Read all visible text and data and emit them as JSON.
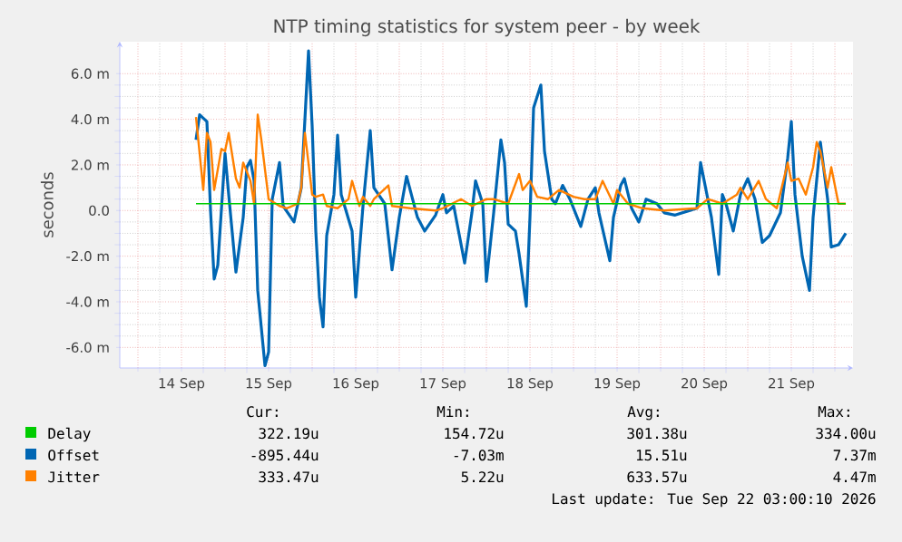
{
  "chart_data": {
    "type": "line",
    "title": "NTP timing statistics for system peer - by week",
    "ylabel": "seconds",
    "xlim": [
      "2026-09-13T19:00",
      "2026-09-22T05:00"
    ],
    "xticks": [
      {
        "value": "2026-09-14T00:00",
        "label": null
      },
      {
        "value": "2026-09-14T12:00",
        "label": "14 Sep"
      },
      {
        "value": "2026-09-15T00:00",
        "label": null
      },
      {
        "value": "2026-09-15T12:00",
        "label": "15 Sep"
      },
      {
        "value": "2026-09-16T00:00",
        "label": null
      },
      {
        "value": "2026-09-16T12:00",
        "label": "16 Sep"
      },
      {
        "value": "2026-09-17T00:00",
        "label": null
      },
      {
        "value": "2026-09-17T12:00",
        "label": "17 Sep"
      },
      {
        "value": "2026-09-18T00:00",
        "label": null
      },
      {
        "value": "2026-09-18T12:00",
        "label": "18 Sep"
      },
      {
        "value": "2026-09-19T00:00",
        "label": null
      },
      {
        "value": "2026-09-19T12:00",
        "label": "19 Sep"
      },
      {
        "value": "2026-09-20T00:00",
        "label": null
      },
      {
        "value": "2026-09-20T12:00",
        "label": "20 Sep"
      },
      {
        "value": "2026-09-21T00:00",
        "label": null
      },
      {
        "value": "2026-09-21T12:00",
        "label": "21 Sep"
      },
      {
        "value": "2026-09-22T00:00",
        "label": null
      }
    ],
    "ylim": [
      -6.9,
      7.4
    ],
    "yticks": [
      {
        "value": -6,
        "label": "-6.0 m"
      },
      {
        "value": -4,
        "label": "-4.0 m"
      },
      {
        "value": -2,
        "label": "-2.0 m"
      },
      {
        "value": 0,
        "label": "0.0"
      },
      {
        "value": 2,
        "label": "2.0 m"
      },
      {
        "value": 4,
        "label": "4.0 m"
      },
      {
        "value": 6,
        "label": "6.0 m"
      }
    ],
    "grid": true,
    "legend": "bottom",
    "series": [
      {
        "name": "Delay",
        "color": "#00cc00",
        "x": [
          "2026-09-14T16:00",
          "2026-09-17T12:00",
          "2026-09-20T12:00",
          "2026-09-22T03:00"
        ],
        "values": [
          0.3,
          0.3,
          0.3,
          0.3
        ]
      },
      {
        "name": "Offset",
        "color": "#0066b3",
        "x": [
          "2026-09-14T16:00",
          "2026-09-14T17:00",
          "2026-09-14T19:00",
          "2026-09-14T20:00",
          "2026-09-14T21:00",
          "2026-09-14T22:00",
          "2026-09-15T00:00",
          "2026-09-15T01:00",
          "2026-09-15T03:00",
          "2026-09-15T05:00",
          "2026-09-15T06:00",
          "2026-09-15T07:00",
          "2026-09-15T08:00",
          "2026-09-15T09:00",
          "2026-09-15T11:00",
          "2026-09-15T12:00",
          "2026-09-15T13:00",
          "2026-09-15T15:00",
          "2026-09-15T16:00",
          "2026-09-15T19:00",
          "2026-09-15T21:00",
          "2026-09-15T23:00",
          "2026-09-16T00:00",
          "2026-09-16T01:00",
          "2026-09-16T02:00",
          "2026-09-16T03:00",
          "2026-09-16T04:00",
          "2026-09-16T06:00",
          "2026-09-16T07:00",
          "2026-09-16T08:00",
          "2026-09-16T11:00",
          "2026-09-16T12:00",
          "2026-09-16T14:00",
          "2026-09-16T16:00",
          "2026-09-16T17:00",
          "2026-09-16T20:00",
          "2026-09-16T22:00",
          "2026-09-17T00:00",
          "2026-09-17T02:00",
          "2026-09-17T03:00",
          "2026-09-17T05:00",
          "2026-09-17T07:00",
          "2026-09-17T10:00",
          "2026-09-17T12:00",
          "2026-09-17T13:00",
          "2026-09-17T15:00",
          "2026-09-17T18:00",
          "2026-09-17T20:00",
          "2026-09-17T21:00",
          "2026-09-17T23:00",
          "2026-09-18T00:00",
          "2026-09-18T02:00",
          "2026-09-18T04:00",
          "2026-09-18T05:00",
          "2026-09-18T06:00",
          "2026-09-18T08:00",
          "2026-09-18T09:00",
          "2026-09-18T11:00",
          "2026-09-18T12:00",
          "2026-09-18T13:00",
          "2026-09-18T15:00",
          "2026-09-18T16:00",
          "2026-09-18T18:00",
          "2026-09-18T19:00",
          "2026-09-18T21:00",
          "2026-09-18T23:00",
          "2026-09-19T02:00",
          "2026-09-19T04:00",
          "2026-09-19T06:00",
          "2026-09-19T07:00",
          "2026-09-19T10:00",
          "2026-09-19T11:00",
          "2026-09-19T13:00",
          "2026-09-19T14:00",
          "2026-09-19T16:00",
          "2026-09-19T18:00",
          "2026-09-19T20:00",
          "2026-09-19T23:00",
          "2026-09-20T01:00",
          "2026-09-20T04:00",
          "2026-09-20T10:00",
          "2026-09-20T11:00",
          "2026-09-20T13:00",
          "2026-09-20T14:00",
          "2026-09-20T16:00",
          "2026-09-20T17:00",
          "2026-09-20T18:00",
          "2026-09-20T20:00",
          "2026-09-20T22:00",
          "2026-09-21T00:00",
          "2026-09-21T02:00",
          "2026-09-21T04:00",
          "2026-09-21T06:00",
          "2026-09-21T09:00",
          "2026-09-21T11:00",
          "2026-09-21T12:00",
          "2026-09-21T13:00",
          "2026-09-21T15:00",
          "2026-09-21T17:00",
          "2026-09-21T18:00",
          "2026-09-21T20:00",
          "2026-09-21T22:00",
          "2026-09-21T23:00",
          "2026-09-22T01:00",
          "2026-09-22T03:00"
        ],
        "values": [
          3.1,
          4.2,
          3.9,
          0,
          -3.0,
          -2.4,
          2.5,
          0.7,
          -2.7,
          -0.3,
          1.9,
          2.2,
          1.3,
          -3.5,
          -6.8,
          -6.2,
          0.5,
          2.1,
          0.2,
          -0.5,
          1.0,
          7.0,
          3.7,
          -0.9,
          -3.8,
          -5.1,
          -1.1,
          0.7,
          3.3,
          0.7,
          -0.9,
          -3.8,
          0.2,
          3.5,
          1.0,
          0.3,
          -2.6,
          -0.3,
          1.5,
          0.9,
          -0.3,
          -0.9,
          -0.2,
          0.7,
          -0.1,
          0.2,
          -2.3,
          -0.1,
          1.3,
          0.3,
          -3.1,
          -0.1,
          3.1,
          2.1,
          -0.6,
          -0.9,
          -1.9,
          -4.2,
          -0.3,
          4.5,
          5.5,
          2.6,
          0.5,
          0.3,
          1.1,
          0.5,
          -0.7,
          0.5,
          1.0,
          -0.1,
          -2.2,
          -0.3,
          1.1,
          1.4,
          0.1,
          -0.5,
          0.5,
          0.3,
          -0.1,
          -0.2,
          0.1,
          2.1,
          0.5,
          -0.3,
          -2.8,
          0.7,
          0.3,
          -0.9,
          0.7,
          1.4,
          0.5,
          -1.4,
          -1.1,
          -0.1,
          2.3,
          3.9,
          0.7,
          -2.0,
          -3.5,
          -0.3,
          3.0,
          0.5,
          -1.6,
          -1.5,
          -1.0
        ]
      },
      {
        "name": "Jitter",
        "color": "#ff8000",
        "x": [
          "2026-09-14T16:00",
          "2026-09-14T18:00",
          "2026-09-14T19:00",
          "2026-09-14T20:00",
          "2026-09-14T21:00",
          "2026-09-14T23:00",
          "2026-09-15T00:00",
          "2026-09-15T01:00",
          "2026-09-15T03:00",
          "2026-09-15T04:00",
          "2026-09-15T05:00",
          "2026-09-15T07:00",
          "2026-09-15T08:00",
          "2026-09-15T09:00",
          "2026-09-15T10:00",
          "2026-09-15T12:00",
          "2026-09-15T15:00",
          "2026-09-15T17:00",
          "2026-09-15T20:00",
          "2026-09-15T21:00",
          "2026-09-15T22:00",
          "2026-09-16T00:00",
          "2026-09-16T01:00",
          "2026-09-16T03:00",
          "2026-09-16T04:00",
          "2026-09-16T07:00",
          "2026-09-16T10:00",
          "2026-09-16T11:00",
          "2026-09-16T13:00",
          "2026-09-16T14:00",
          "2026-09-16T16:00",
          "2026-09-16T17:00",
          "2026-09-16T21:00",
          "2026-09-16T22:00",
          "2026-09-17T03:00",
          "2026-09-17T10:00",
          "2026-09-17T12:00",
          "2026-09-17T17:00",
          "2026-09-17T20:00",
          "2026-09-18T00:00",
          "2026-09-18T02:00",
          "2026-09-18T06:00",
          "2026-09-18T09:00",
          "2026-09-18T10:00",
          "2026-09-18T12:00",
          "2026-09-18T14:00",
          "2026-09-18T17:00",
          "2026-09-18T20:00",
          "2026-09-19T00:00",
          "2026-09-19T03:00",
          "2026-09-19T06:00",
          "2026-09-19T08:00",
          "2026-09-19T11:00",
          "2026-09-19T12:00",
          "2026-09-19T15:00",
          "2026-09-19T19:00",
          "2026-09-20T01:00",
          "2026-09-20T10:00",
          "2026-09-20T13:00",
          "2026-09-20T17:00",
          "2026-09-20T21:00",
          "2026-09-20T22:00",
          "2026-09-21T00:00",
          "2026-09-21T03:00",
          "2026-09-21T05:00",
          "2026-09-21T08:00",
          "2026-09-21T11:00",
          "2026-09-21T12:00",
          "2026-09-21T14:00",
          "2026-09-21T16:00",
          "2026-09-21T18:00",
          "2026-09-21T19:00",
          "2026-09-21T20:00",
          "2026-09-21T22:00",
          "2026-09-21T23:00",
          "2026-09-22T01:00",
          "2026-09-22T03:00"
        ],
        "values": [
          4.1,
          0.9,
          3.4,
          3.0,
          0.9,
          2.7,
          2.6,
          3.4,
          1.4,
          1.0,
          2.1,
          1.3,
          0.3,
          4.2,
          3.1,
          0.5,
          0.2,
          0.1,
          0.3,
          1.0,
          3.4,
          0.7,
          0.6,
          0.7,
          0.2,
          0.1,
          0.5,
          1.3,
          0.2,
          0.6,
          0.2,
          0.5,
          1.1,
          0.2,
          0.1,
          0.0,
          0.1,
          0.5,
          0.2,
          0.5,
          0.5,
          0.3,
          1.6,
          0.9,
          1.3,
          0.6,
          0.5,
          0.9,
          0.6,
          0.5,
          0.5,
          1.3,
          0.3,
          0.9,
          0.3,
          0.1,
          0.0,
          0.1,
          0.5,
          0.3,
          0.7,
          1.0,
          0.5,
          1.3,
          0.5,
          0.1,
          2.1,
          1.3,
          1.4,
          0.7,
          1.9,
          3.0,
          2.6,
          1.0,
          1.9,
          0.3,
          0.3
        ]
      }
    ],
    "annotations": [
      "Cur:",
      "Min:",
      "Avg:",
      "Max:",
      "322.19u",
      "154.72u",
      "301.38u",
      "334.00u",
      "-895.44u",
      "-7.03m",
      "15.51u",
      "7.37m",
      "333.47u",
      "5.22u",
      "633.57u",
      "4.47m",
      "Last update: Tue Sep 22 03:00:10 2026"
    ]
  }
}
